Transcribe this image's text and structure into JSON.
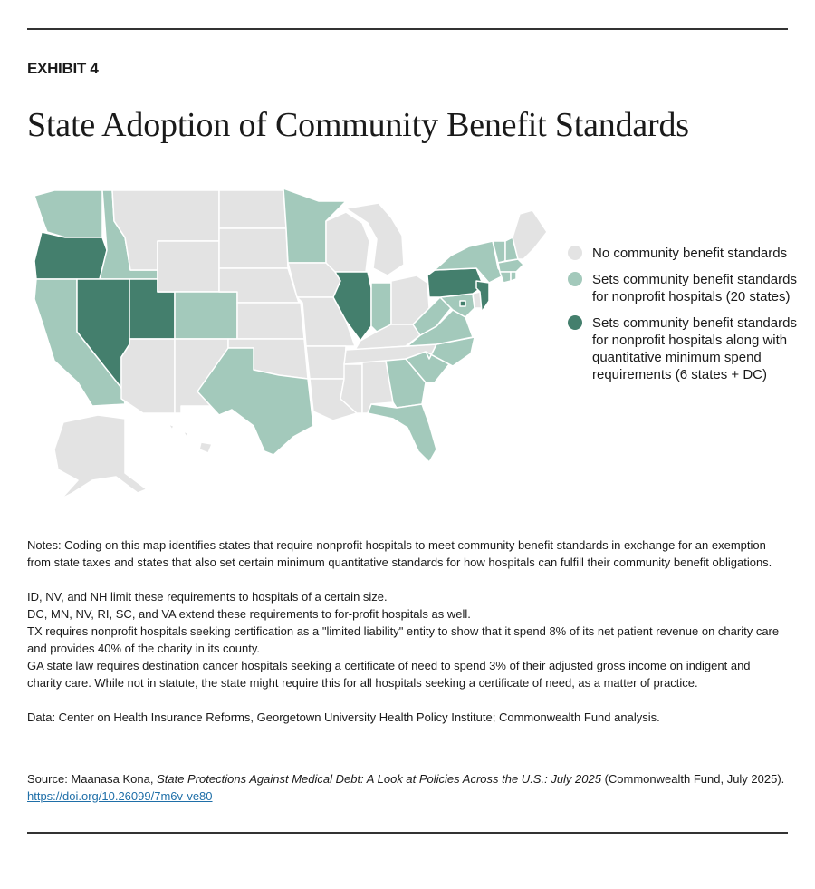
{
  "exhibit_label": "EXHIBIT 4",
  "title": "State Adoption of Community Benefit Standards",
  "colors": {
    "none": "#e3e3e3",
    "standards": "#a3c9bb",
    "standards_min_spend": "#447f6d"
  },
  "legend": [
    {
      "key": "none",
      "label": "No community benefit standards"
    },
    {
      "key": "standards",
      "label": "Sets community benefit standards for nonprofit hospitals (20 states)"
    },
    {
      "key": "standards_min_spend",
      "label": "Sets community benefit standards for nonprofit hospitals along with quantitative minimum spend requirements (6 states + DC)"
    }
  ],
  "states": {
    "standards": [
      "WA",
      "ID",
      "CA",
      "CO",
      "MN",
      "TX",
      "IN",
      "WV",
      "VA",
      "MD",
      "NC",
      "SC",
      "GA",
      "FL",
      "NY",
      "VT",
      "NH",
      "MA",
      "CT",
      "RI"
    ],
    "standards_min_spend": [
      "OR",
      "NV",
      "UT",
      "IL",
      "PA",
      "NJ",
      "DC"
    ]
  },
  "notes": {
    "intro": "Notes: Coding on this map identifies states that require nonprofit hospitals to meet community benefit standards in exchange for an exemption from state taxes and states that also set certain minimum quantitative standards for how hospitals can fulfill their community benefit obligations.",
    "line1": "ID, NV, and NH limit these requirements to hospitals of a certain size.",
    "line2": "DC, MN, NV, RI, SC, and VA extend these requirements to for-profit hospitals as well.",
    "line3": "TX requires nonprofit hospitals seeking certification as a \"limited liability\" entity to show that it spend 8% of its net patient revenue on charity care and provides 40% of the charity in its county.",
    "line4": "GA state law requires destination cancer hospitals seeking a certificate of need to spend 3% of their adjusted gross income on indigent and charity care. While not in statute, the state might require this for all hospitals seeking a certificate of need, as a matter of practice.",
    "data": "Data: Center on Health Insurance Reforms, Georgetown University Health Policy Institute; Commonwealth Fund analysis."
  },
  "source": {
    "prefix": "Source: Maanasa Kona, ",
    "title": "State Protections Against Medical Debt: A Look at Policies Across the U.S.: July 2025",
    "suffix": " (Commonwealth Fund, July 2025). ",
    "link": "https://doi.org/10.26099/7m6v-ve80"
  }
}
